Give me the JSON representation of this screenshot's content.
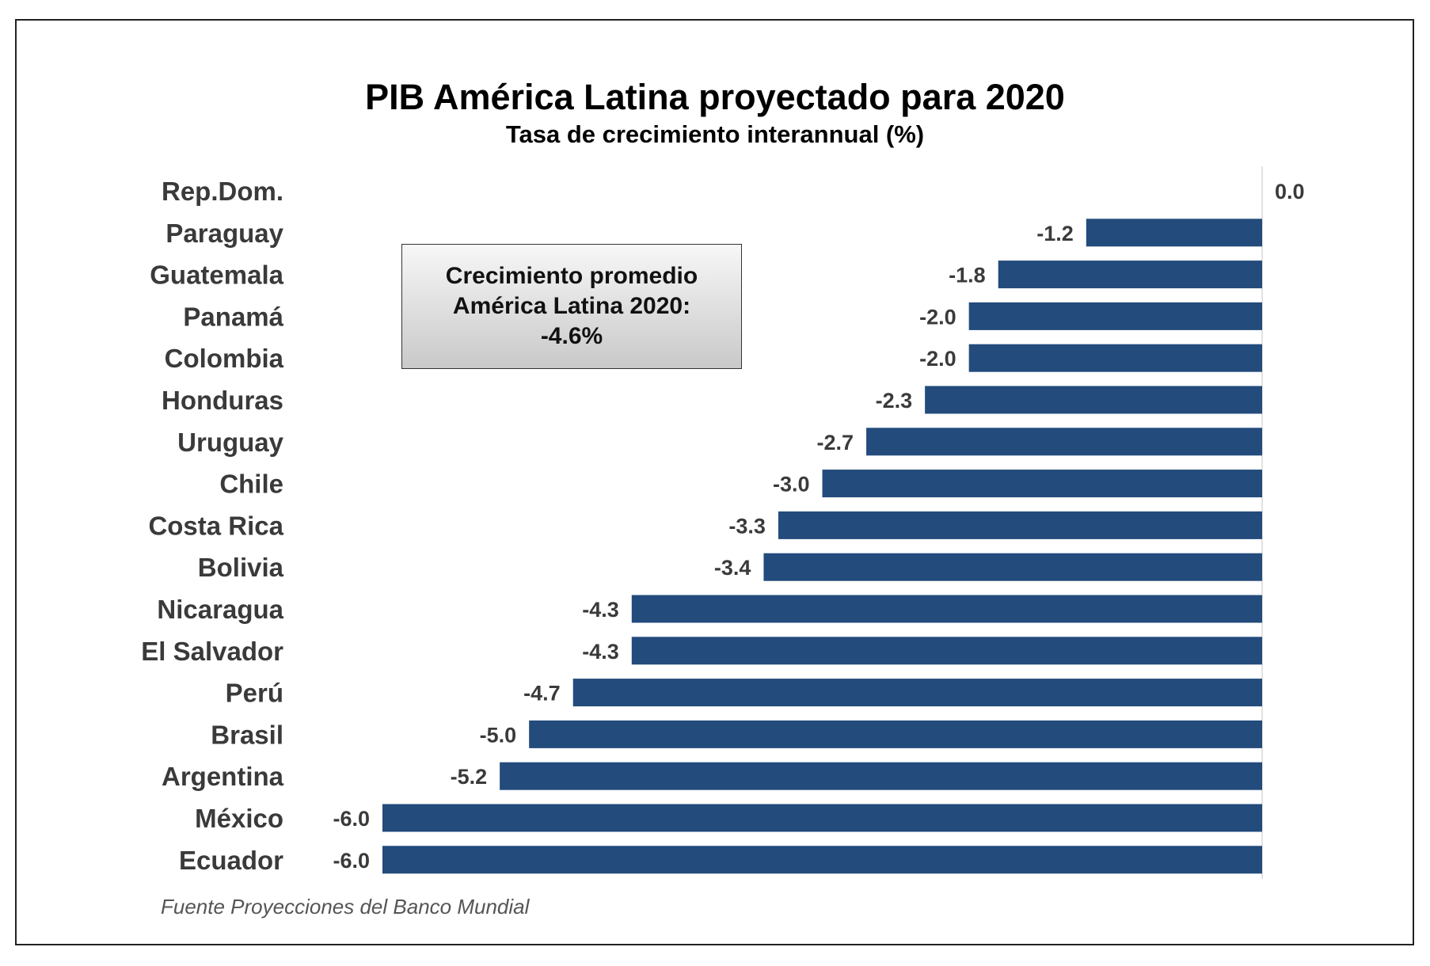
{
  "chart_data": {
    "type": "bar",
    "orientation": "horizontal",
    "title": "PIB América Latina proyectado para 2020",
    "subtitle": "Tasa de crecimiento interannual (%)",
    "categories": [
      "Rep.Dom.",
      "Paraguay",
      "Guatemala",
      "Panamá",
      "Colombia",
      "Honduras",
      "Uruguay",
      "Chile",
      "Costa Rica",
      "Bolivia",
      "Nicaragua",
      "El Salvador",
      "Perú",
      "Brasil",
      "Argentina",
      "México",
      "Ecuador"
    ],
    "values": [
      0.0,
      -1.2,
      -1.8,
      -2.0,
      -2.0,
      -2.3,
      -2.7,
      -3.0,
      -3.3,
      -3.4,
      -4.3,
      -4.3,
      -4.7,
      -5.0,
      -5.2,
      -6.0,
      -6.0
    ],
    "value_labels": [
      "0.0",
      "-1.2",
      "-1.8",
      "-2.0",
      "-2.0",
      "-2.3",
      "-2.7",
      "-3.0",
      "-3.3",
      "-3.4",
      "-4.3",
      "-4.3",
      "-4.7",
      "-5.0",
      "-5.2",
      "-6.0",
      "-6.0"
    ],
    "xlim": [
      -6,
      0
    ],
    "bar_color": "#234b7c",
    "grid": false
  },
  "callout": {
    "line1": "Crecimiento promedio",
    "line2": "América Latina 2020:",
    "line3": "-4.6%"
  },
  "source": "Fuente Proyecciones del Banco Mundial"
}
